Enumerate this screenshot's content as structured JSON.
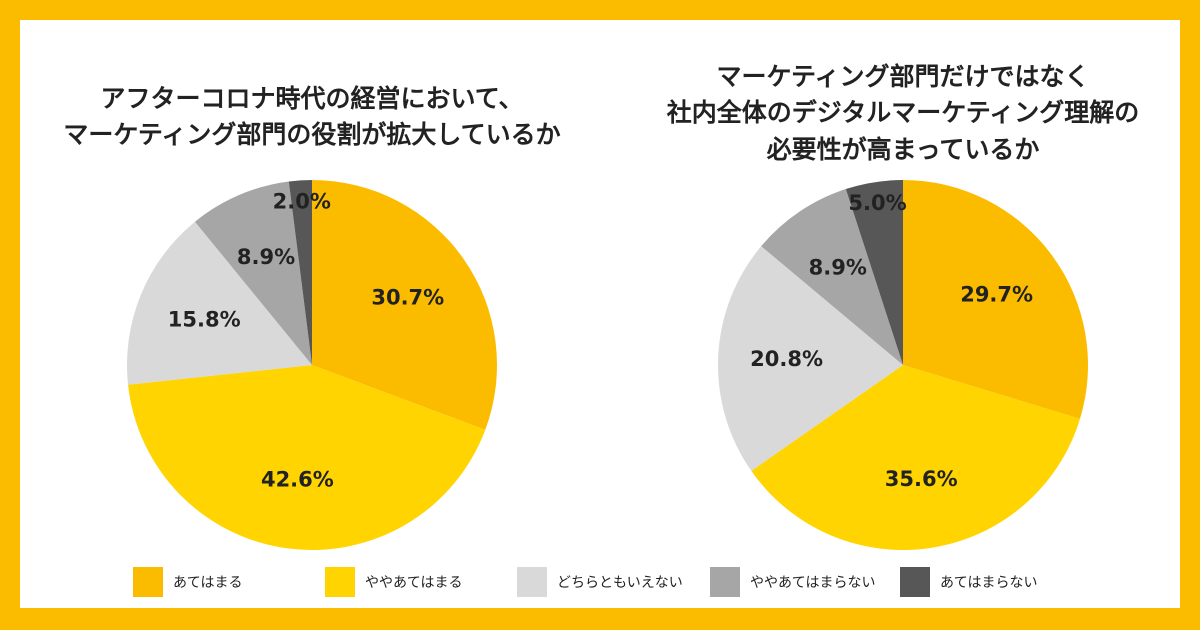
{
  "chart_data": [
    {
      "type": "pie",
      "title": [
        "アフターコロナ時代の経営において、",
        "マーケティング部門の役割が拡大しているか"
      ],
      "categories": [
        "あてはまる",
        "ややあてはまる",
        "どちらともいえない",
        "ややあてはまらない",
        "あてはまらない"
      ],
      "values": [
        30.7,
        42.6,
        15.8,
        8.9,
        2.0
      ],
      "value_labels": [
        "30.7%",
        "42.6%",
        "15.8%",
        "8.9%",
        "2.0%"
      ],
      "colors": [
        "#fbbc00",
        "#ffd400",
        "#d9d9d9",
        "#a6a6a6",
        "#575757"
      ]
    },
    {
      "type": "pie",
      "title": [
        "マーケティング部門だけではなく",
        "社内全体のデジタルマーケティング理解の",
        "必要性が高まっているか"
      ],
      "categories": [
        "あてはまる",
        "ややあてはまる",
        "どちらともいえない",
        "ややあてはまらない",
        "あてはまらない"
      ],
      "values": [
        29.7,
        35.6,
        20.8,
        8.9,
        5.0
      ],
      "value_labels": [
        "29.7%",
        "35.6%",
        "20.8%",
        "8.9%",
        "5.0%"
      ],
      "colors": [
        "#fbbc00",
        "#ffd400",
        "#d9d9d9",
        "#a6a6a6",
        "#575757"
      ]
    }
  ]
}
